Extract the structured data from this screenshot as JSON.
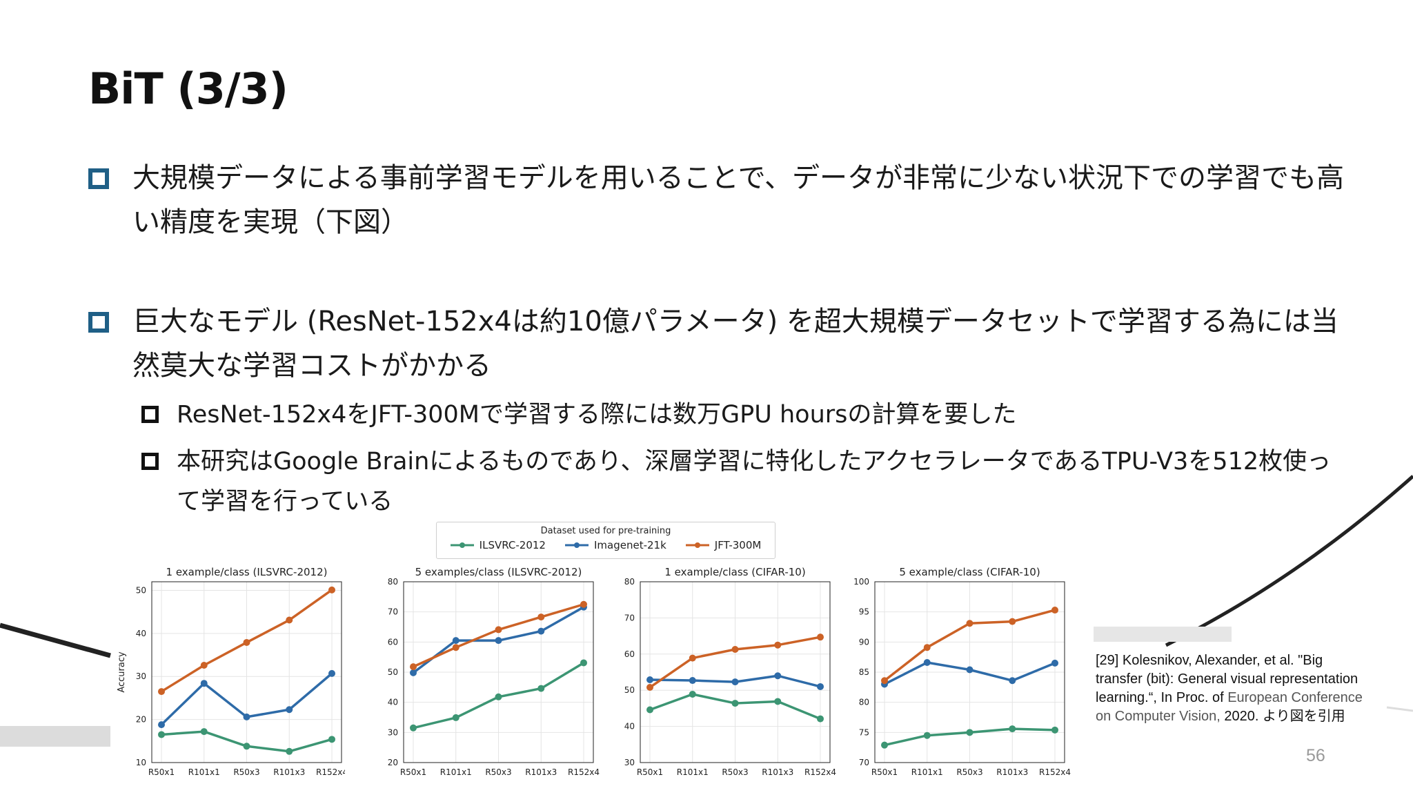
{
  "slide": {
    "title": "BiT (3/3)",
    "bullet1": "大規模データによる事前学習モデルを用いることで、データが非常に少ない状況下での学習でも高い精度を実現（下図）",
    "bullet2": "巨大なモデル (ResNet-152x4は約10億パラメータ) を超大規模データセットで学習する為には当然莫大な学習コストがかかる",
    "sub1": "ResNet-152x4をJFT-300Mで学習する際には数万GPU hoursの計算を要した",
    "sub2": "本研究はGoogle Brainによるものであり、深層学習に特化したアクセラレータであるTPU-V3を512枚使って学習を行っている",
    "citation_main": "[29] Kolesnikov, Alexander, et al. \"Big transfer (bit): General visual representation learning.“, In Proc. of",
    "citation_venue": "European Conference on Computer Vision,",
    "citation_tail": " 2020. より図を引用",
    "page_number": "56"
  },
  "legend": {
    "title": "Dataset used for pre-training",
    "items": [
      "ILSVRC-2012",
      "Imagenet-21k",
      "JFT-300M"
    ]
  },
  "colors": {
    "ilsvrc": "#3c9573",
    "imagenet": "#2e6ba8",
    "jft": "#cc6226",
    "bullet": "#1f5f86"
  },
  "chart_data": [
    {
      "type": "line",
      "title": "1 example/class (ILSVRC-2012)",
      "xlabel": "",
      "ylabel": "Accuracy",
      "categories": [
        "R50x1",
        "R101x1",
        "R50x3",
        "R101x3",
        "R152x4"
      ],
      "ylim": [
        10,
        52
      ],
      "yticks": [
        10,
        20,
        30,
        40,
        50
      ],
      "series": [
        {
          "name": "ILSVRC-2012",
          "values": [
            16.5,
            17.2,
            13.8,
            12.6,
            15.4
          ]
        },
        {
          "name": "Imagenet-21k",
          "values": [
            18.8,
            28.4,
            20.6,
            22.3,
            30.7
          ]
        },
        {
          "name": "JFT-300M",
          "values": [
            26.5,
            32.6,
            37.9,
            43.1,
            50.1
          ]
        }
      ]
    },
    {
      "type": "line",
      "title": "5 examples/class (ILSVRC-2012)",
      "xlabel": "",
      "ylabel": "",
      "categories": [
        "R50x1",
        "R101x1",
        "R50x3",
        "R101x3",
        "R152x4"
      ],
      "ylim": [
        20,
        80
      ],
      "yticks": [
        20,
        30,
        40,
        50,
        60,
        70,
        80
      ],
      "series": [
        {
          "name": "ILSVRC-2012",
          "values": [
            31.5,
            34.9,
            41.8,
            44.6,
            53.1
          ]
        },
        {
          "name": "Imagenet-21k",
          "values": [
            49.8,
            60.5,
            60.5,
            63.6,
            71.6
          ]
        },
        {
          "name": "JFT-300M",
          "values": [
            51.8,
            58.2,
            64.1,
            68.3,
            72.5
          ]
        }
      ]
    },
    {
      "type": "line",
      "title": "1 example/class (CIFAR-10)",
      "xlabel": "",
      "ylabel": "",
      "categories": [
        "R50x1",
        "R101x1",
        "R50x3",
        "R101x3",
        "R152x4"
      ],
      "ylim": [
        30,
        80
      ],
      "yticks": [
        30,
        40,
        50,
        60,
        70,
        80
      ],
      "series": [
        {
          "name": "ILSVRC-2012",
          "values": [
            44.6,
            48.9,
            46.4,
            46.9,
            42.1
          ]
        },
        {
          "name": "Imagenet-21k",
          "values": [
            52.9,
            52.7,
            52.3,
            54.0,
            51.0
          ]
        },
        {
          "name": "JFT-300M",
          "values": [
            50.8,
            58.9,
            61.3,
            62.5,
            64.7
          ]
        }
      ]
    },
    {
      "type": "line",
      "title": "5 example/class (CIFAR-10)",
      "xlabel": "",
      "ylabel": "",
      "categories": [
        "R50x1",
        "R101x1",
        "R50x3",
        "R101x3",
        "R152x4"
      ],
      "ylim": [
        70,
        100
      ],
      "yticks": [
        70,
        75,
        80,
        85,
        90,
        95,
        100
      ],
      "series": [
        {
          "name": "ILSVRC-2012",
          "values": [
            72.9,
            74.5,
            75.0,
            75.6,
            75.4
          ]
        },
        {
          "name": "Imagenet-21k",
          "values": [
            83.0,
            86.6,
            85.4,
            83.6,
            86.5
          ]
        },
        {
          "name": "JFT-300M",
          "values": [
            83.6,
            89.1,
            93.1,
            93.4,
            95.3
          ]
        }
      ]
    }
  ]
}
